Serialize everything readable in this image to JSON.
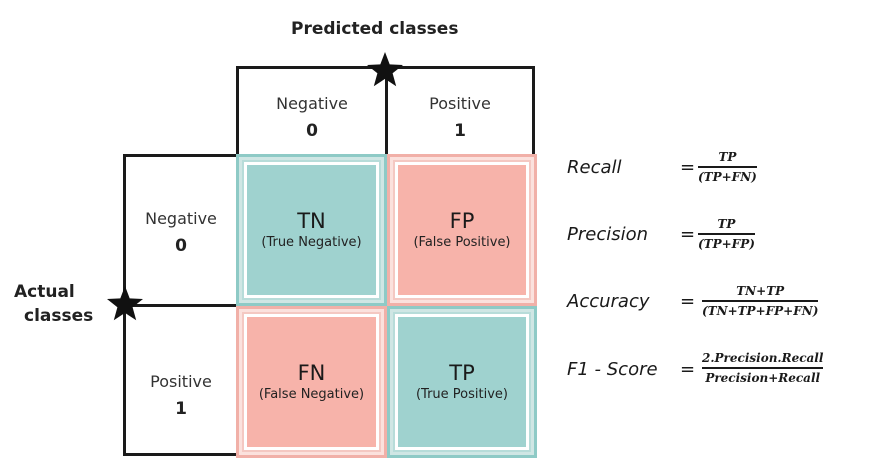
{
  "predicted_title": "Predicted classes",
  "actual_title": [
    "Actual",
    "classes"
  ],
  "predicted_headers": [
    {
      "label": "Negative",
      "value": "0"
    },
    {
      "label": "Positive",
      "value": "1"
    }
  ],
  "actual_headers": [
    {
      "label": "Negative",
      "value": "0"
    },
    {
      "label": "Positive",
      "value": "1"
    }
  ],
  "cells": [
    {
      "abbr": "TN",
      "full": "(True Negative)",
      "color": "#9fd2cf"
    },
    {
      "abbr": "FP",
      "full": "(False Positive)",
      "color": "#f7b3aa"
    },
    {
      "abbr": "FN",
      "full": "(False Negative)",
      "color": "#f7b3aa"
    },
    {
      "abbr": "TP",
      "full": "(True Positive)",
      "color": "#9fd2cf"
    }
  ],
  "formulas": [
    {
      "name": "Recall",
      "equals": "=",
      "numerator": "TP",
      "denominator": "(TP+FN)"
    },
    {
      "name": "Precision",
      "equals": "=",
      "numerator": "TP",
      "denominator": "(TP+FP)"
    },
    {
      "name": "Accuracy",
      "equals": "=",
      "numerator": "TN+TP",
      "denominator": "(TN+TP+FP+FN)"
    },
    {
      "name": "F1 - Score",
      "equals": "=",
      "numerator": "2.Precision.Recall",
      "denominator": "Precision+Recall"
    }
  ]
}
